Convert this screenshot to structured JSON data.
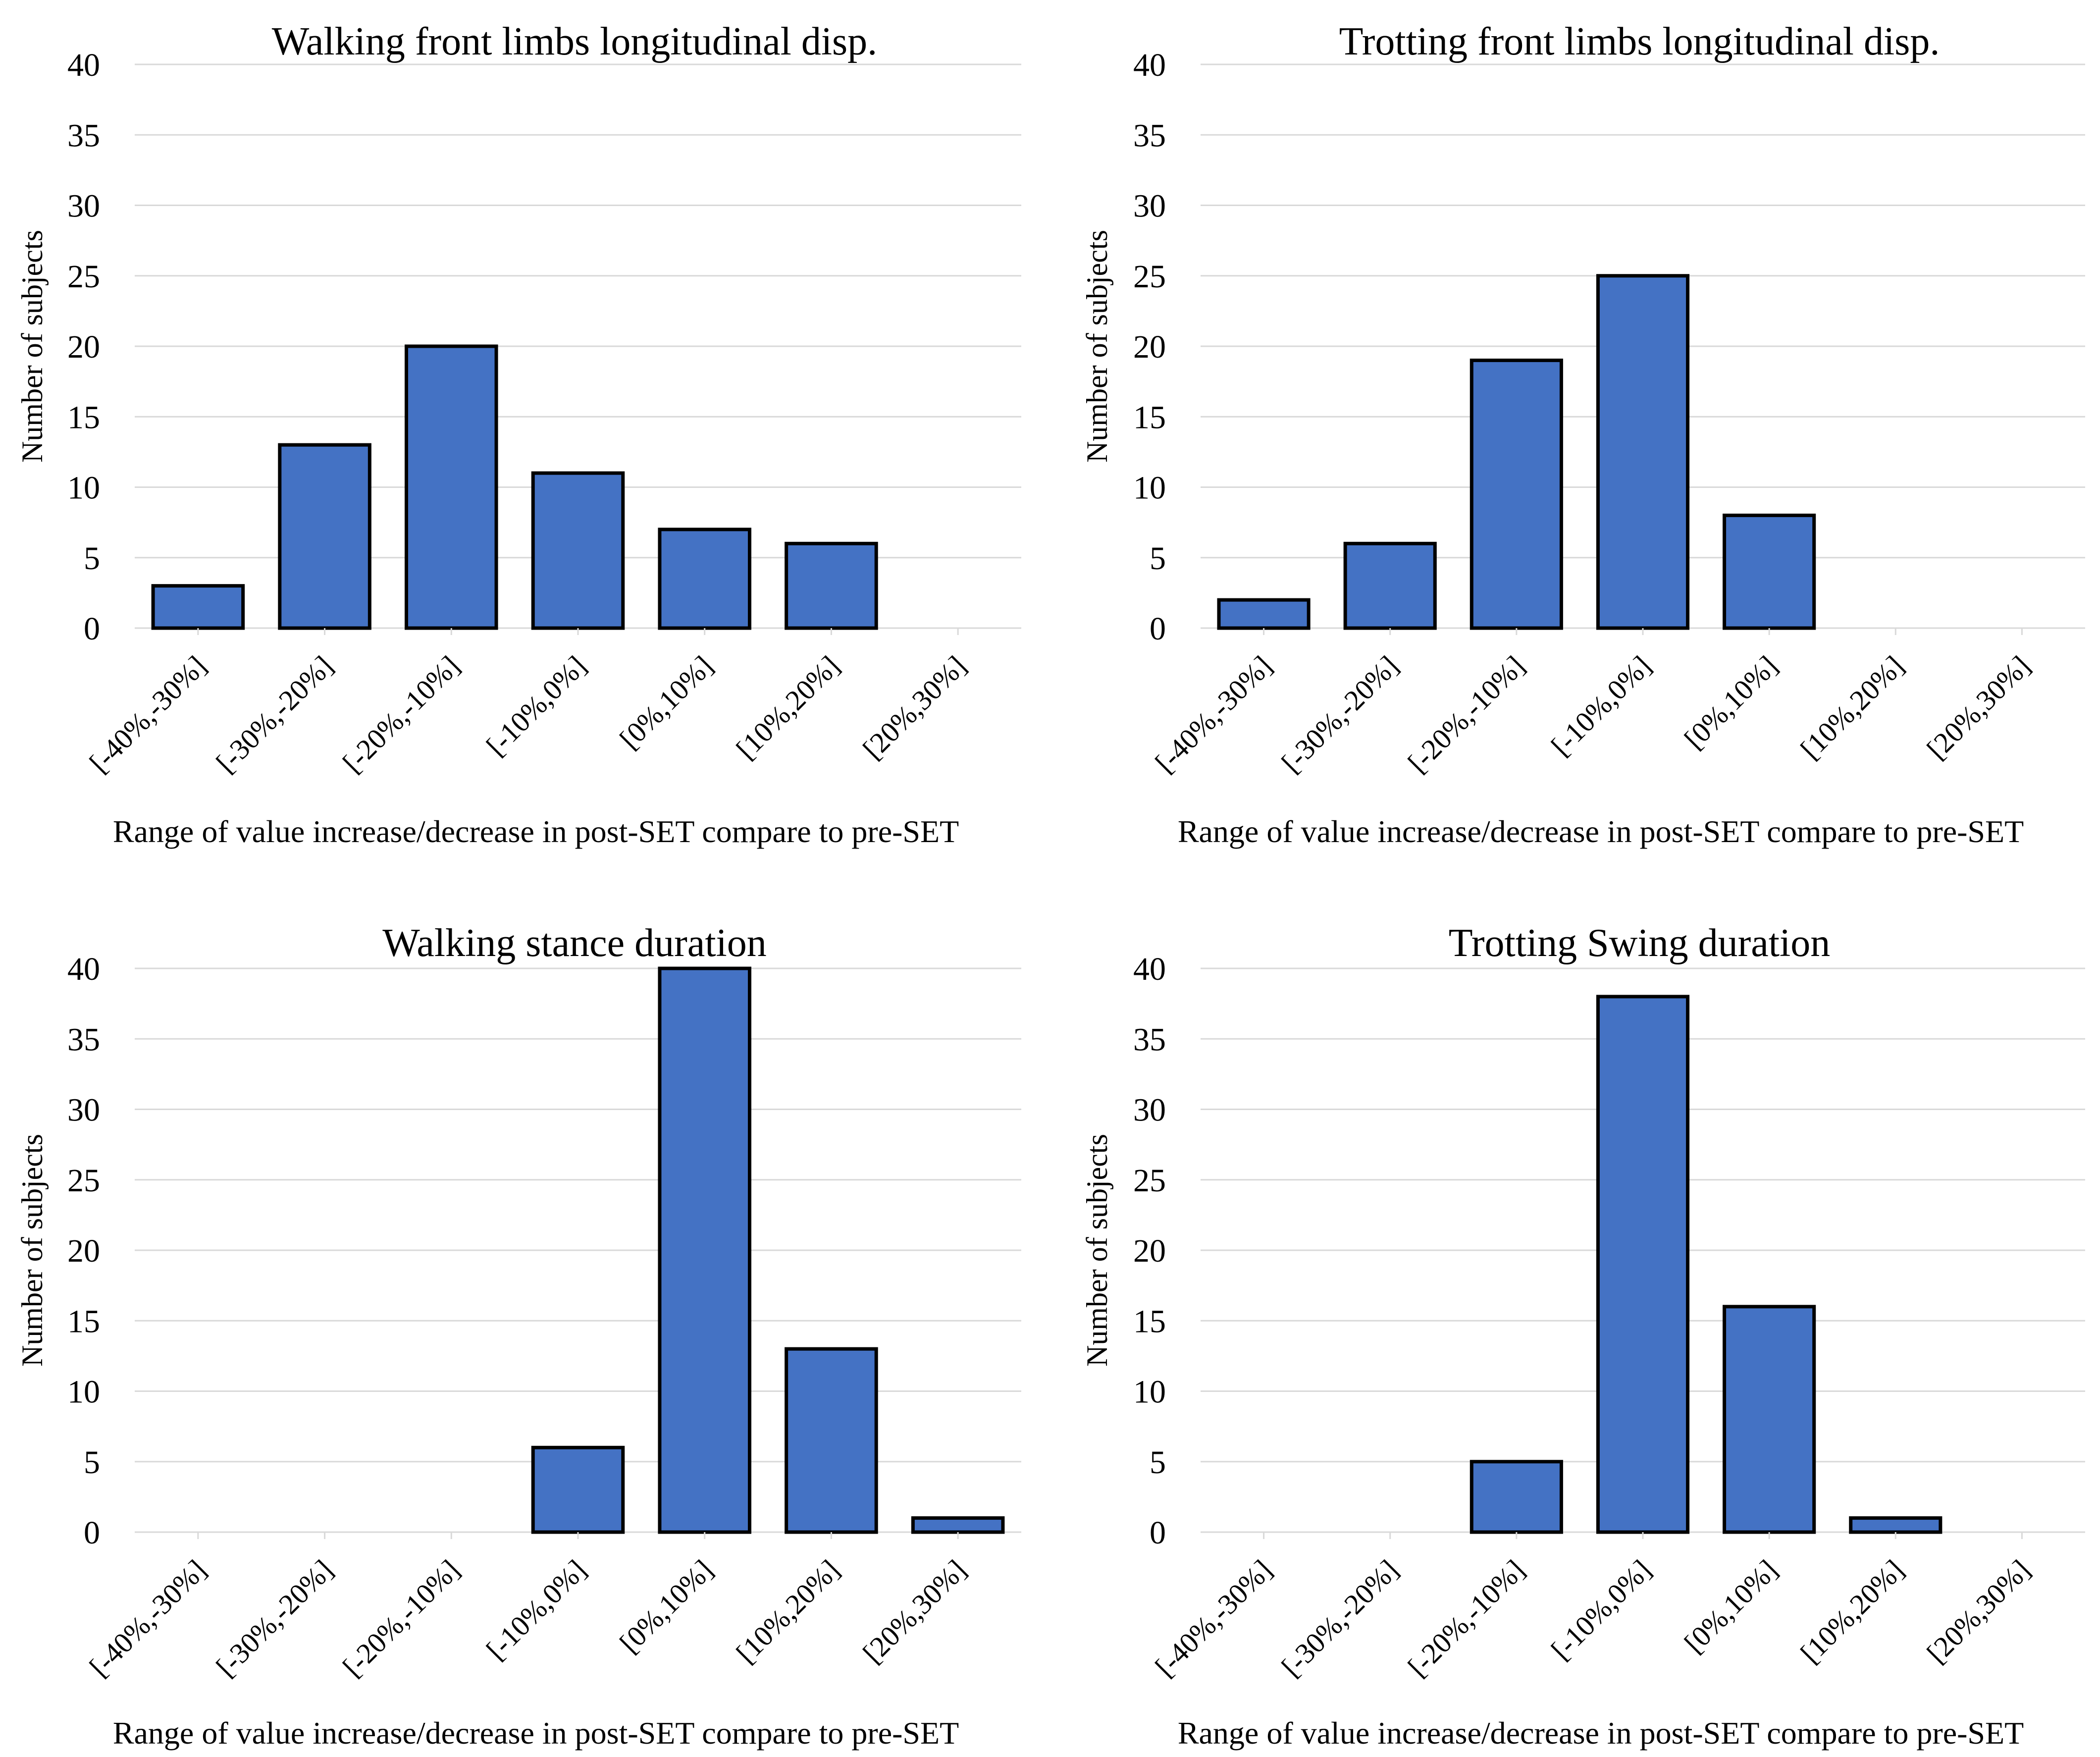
{
  "colors": {
    "bar": "#4472c4",
    "bar_edge": "#000000",
    "grid": "#d9d9d9"
  },
  "chart_data": [
    {
      "type": "bar",
      "title": "Walking front limbs longitudinal disp.",
      "xlabel": "Range of value increase/decrease in post-SET compare to pre-SET",
      "ylabel": "Number of subjects",
      "categories": [
        "[-40%,-30%]",
        "[-30%,-20%]",
        "[-20%,-10%]",
        "[-10%,0%]",
        "[0%,10%]",
        "[10%,20%]",
        "[20%,30%]"
      ],
      "values": [
        3,
        13,
        20,
        11,
        7,
        6,
        0
      ],
      "ylim": [
        0,
        40
      ],
      "yticks": [
        "0",
        "5",
        "10",
        "15",
        "20",
        "25",
        "30",
        "35",
        "40"
      ],
      "grid": true,
      "legend": "none"
    },
    {
      "type": "bar",
      "title": "Trotting front limbs longitudinal disp.",
      "xlabel": "Range of value increase/decrease in post-SET compare to pre-SET",
      "ylabel": "Number of subjects",
      "categories": [
        "[-40%,-30%]",
        "[-30%,-20%]",
        "[-20%,-10%]",
        "[-10%,0%]",
        "[0%,10%]",
        "[10%,20%]",
        "[20%,30%]"
      ],
      "values": [
        2,
        6,
        19,
        25,
        8,
        0,
        0
      ],
      "ylim": [
        0,
        40
      ],
      "yticks": [
        "0",
        "5",
        "10",
        "15",
        "20",
        "25",
        "30",
        "35",
        "40"
      ],
      "grid": true,
      "legend": "none"
    },
    {
      "type": "bar",
      "title": "Walking stance duration",
      "xlabel": "Range of value increase/decrease in post-SET compare to pre-SET",
      "ylabel": "Number of subjects",
      "categories": [
        "[-40%,-30%]",
        "[-30%,-20%]",
        "[-20%,-10%]",
        "[-10%,0%]",
        "[0%,10%]",
        "[10%,20%]",
        "[20%,30%]"
      ],
      "values": [
        0,
        0,
        0,
        6,
        40,
        13,
        1
      ],
      "ylim": [
        0,
        40
      ],
      "yticks": [
        "0",
        "5",
        "10",
        "15",
        "20",
        "25",
        "30",
        "35",
        "40"
      ],
      "grid": true,
      "legend": "none"
    },
    {
      "type": "bar",
      "title": "Trotting Swing duration",
      "xlabel": "Range of value increase/decrease in post-SET compare to pre-SET",
      "ylabel": "Number of subjects",
      "categories": [
        "[-40%,-30%]",
        "[-30%,-20%]",
        "[-20%,-10%]",
        "[-10%,0%]",
        "[0%,10%]",
        "[10%,20%]",
        "[20%,30%]"
      ],
      "values": [
        0,
        0,
        5,
        38,
        16,
        1,
        0
      ],
      "ylim": [
        0,
        40
      ],
      "yticks": [
        "0",
        "5",
        "10",
        "15",
        "20",
        "25",
        "30",
        "35",
        "40"
      ],
      "grid": true,
      "legend": "none"
    }
  ]
}
